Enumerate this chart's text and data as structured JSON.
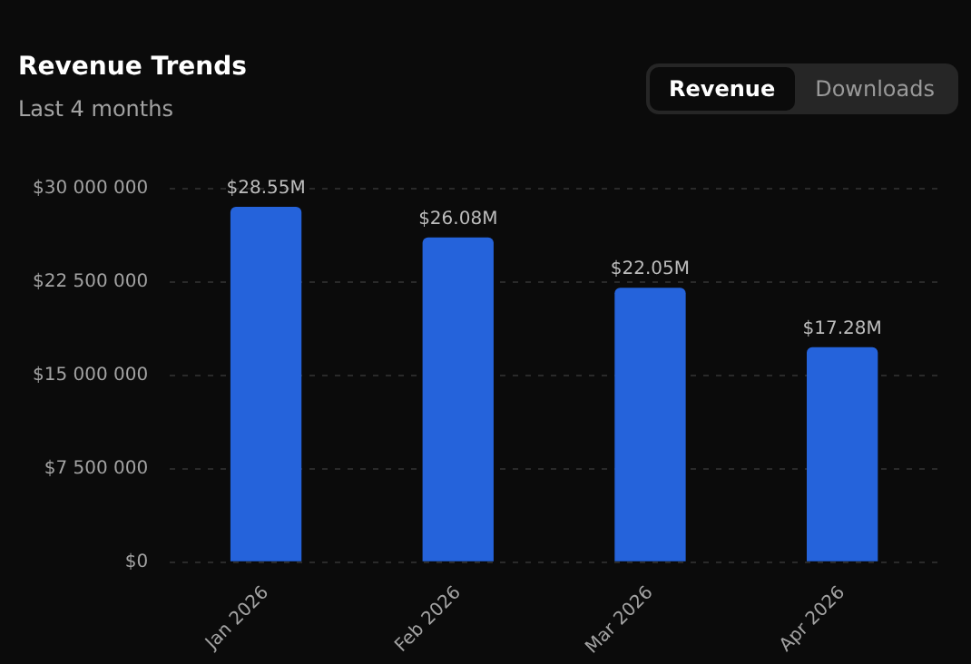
{
  "chart_data": {
    "type": "bar",
    "title": "Revenue Trends",
    "subtitle": "Last 4 months",
    "annotations": [
      "Revenue",
      "Downloads"
    ],
    "categories": [
      "Jan 2026",
      "Feb 2026",
      "Mar 2026",
      "Apr 2026"
    ],
    "values": [
      28550000,
      26080000,
      22050000,
      17280000
    ],
    "value_labels": [
      "$28.55M",
      "$26.08M",
      "$22.05M",
      "$17.28M"
    ],
    "color": "#2563db",
    "ylim": [
      0,
      30000000
    ],
    "yticks": [
      {
        "value": 0,
        "label": "$0"
      },
      {
        "value": 7500000,
        "label": "$7 500 000"
      },
      {
        "value": 15000000,
        "label": "$15 000 000"
      },
      {
        "value": 22500000,
        "label": "$22 500 000"
      },
      {
        "value": 30000000,
        "label": "$30 000 000"
      }
    ],
    "grid": "y",
    "legend": false
  }
}
